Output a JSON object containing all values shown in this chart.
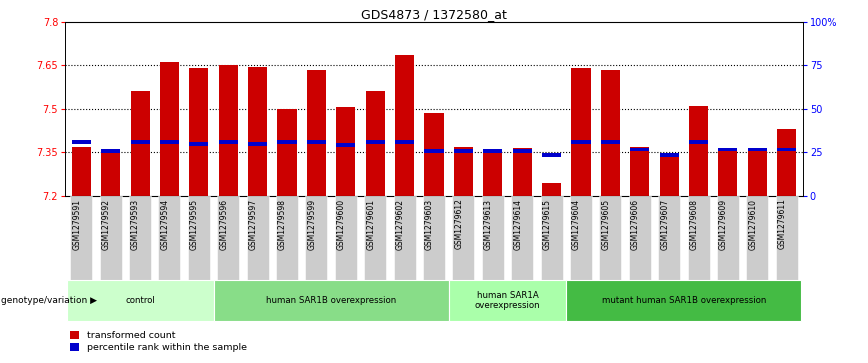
{
  "title": "GDS4873 / 1372580_at",
  "samples": [
    "GSM1279591",
    "GSM1279592",
    "GSM1279593",
    "GSM1279594",
    "GSM1279595",
    "GSM1279596",
    "GSM1279597",
    "GSM1279598",
    "GSM1279599",
    "GSM1279600",
    "GSM1279601",
    "GSM1279602",
    "GSM1279603",
    "GSM1279612",
    "GSM1279613",
    "GSM1279614",
    "GSM1279615",
    "GSM1279604",
    "GSM1279605",
    "GSM1279606",
    "GSM1279607",
    "GSM1279608",
    "GSM1279609",
    "GSM1279610",
    "GSM1279611"
  ],
  "bar_values": [
    7.37,
    7.36,
    7.56,
    7.66,
    7.64,
    7.65,
    7.645,
    7.5,
    7.635,
    7.505,
    7.56,
    7.685,
    7.485,
    7.37,
    7.355,
    7.365,
    7.245,
    7.64,
    7.635,
    7.37,
    7.34,
    7.51,
    7.365,
    7.365,
    7.43
  ],
  "blue_marker_values": [
    7.385,
    7.355,
    7.385,
    7.385,
    7.38,
    7.385,
    7.38,
    7.385,
    7.385,
    7.375,
    7.385,
    7.385,
    7.355,
    7.355,
    7.355,
    7.355,
    7.34,
    7.385,
    7.385,
    7.36,
    7.34,
    7.385,
    7.36,
    7.36,
    7.36
  ],
  "ymin": 7.2,
  "ymax": 7.8,
  "yticks": [
    7.2,
    7.35,
    7.5,
    7.65,
    7.8
  ],
  "ytick_labels": [
    "7.2",
    "7.35",
    "7.5",
    "7.65",
    "7.8"
  ],
  "right_yticks_pct": [
    0,
    25,
    50,
    75,
    100
  ],
  "right_ytick_labels": [
    "0",
    "25",
    "50",
    "75",
    "100%"
  ],
  "dotted_lines": [
    7.35,
    7.5,
    7.65
  ],
  "bar_color": "#CC0000",
  "blue_color": "#0000CC",
  "groups": [
    {
      "label": "control",
      "start": 0,
      "end": 5,
      "color": "#ccffcc"
    },
    {
      "label": "human SAR1B overexpression",
      "start": 5,
      "end": 13,
      "color": "#88dd88"
    },
    {
      "label": "human SAR1A\noverexpression",
      "start": 13,
      "end": 17,
      "color": "#aaffaa"
    },
    {
      "label": "mutant human SAR1B overexpression",
      "start": 17,
      "end": 25,
      "color": "#44bb44"
    }
  ],
  "legend_label_red": "transformed count",
  "legend_label_blue": "percentile rank within the sample",
  "genotype_label": "genotype/variation"
}
